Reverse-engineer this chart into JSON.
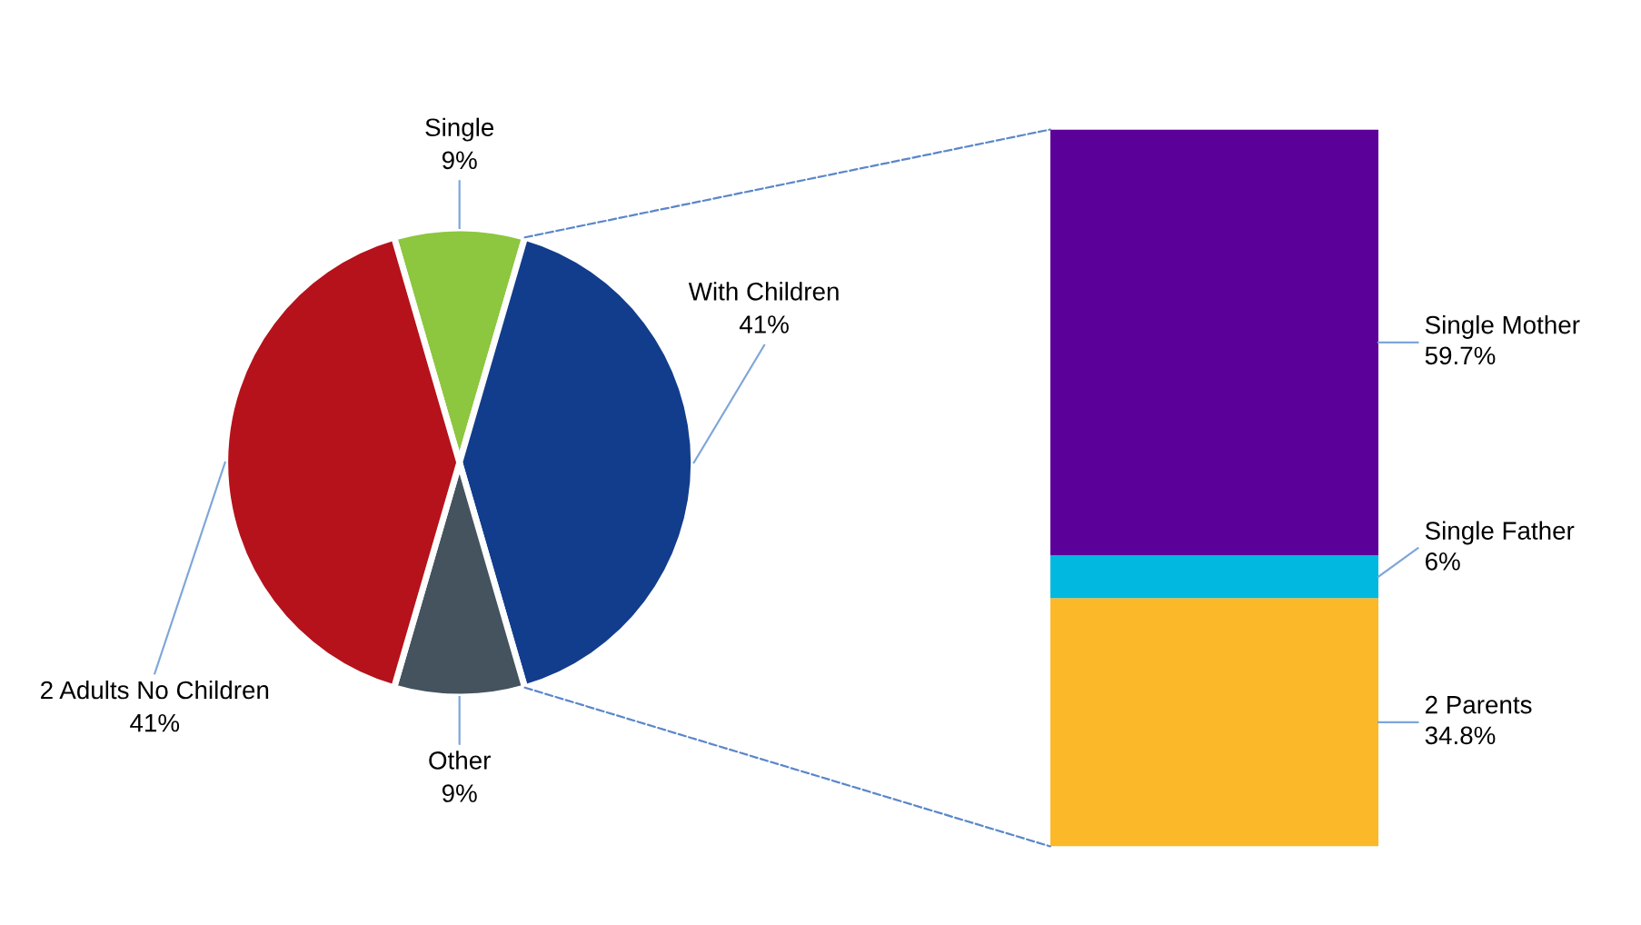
{
  "chart_data": [
    {
      "type": "pie",
      "categories": [
        "Single",
        "With Children",
        "Other",
        "2 Adults No Children"
      ],
      "values": [
        9,
        41,
        9,
        41
      ],
      "value_labels": [
        "9%",
        "41%",
        "9%",
        "41%"
      ],
      "colors": [
        "#8dc63f",
        "#123d8c",
        "#44535e",
        "#b5121b"
      ]
    },
    {
      "type": "bar",
      "stacked": true,
      "categories": [
        null
      ],
      "series": [
        {
          "name": "2 Parents",
          "color": "#fbb829",
          "values": [
            34.8
          ],
          "value_labels": [
            "34.8%"
          ]
        },
        {
          "name": "Single Father",
          "color": "#00b8e0",
          "values": [
            6
          ],
          "value_labels": [
            "6%"
          ]
        },
        {
          "name": "Single Mother",
          "color": "#5b0099",
          "values": [
            59.7
          ],
          "value_labels": [
            "59.7%"
          ]
        }
      ]
    }
  ]
}
